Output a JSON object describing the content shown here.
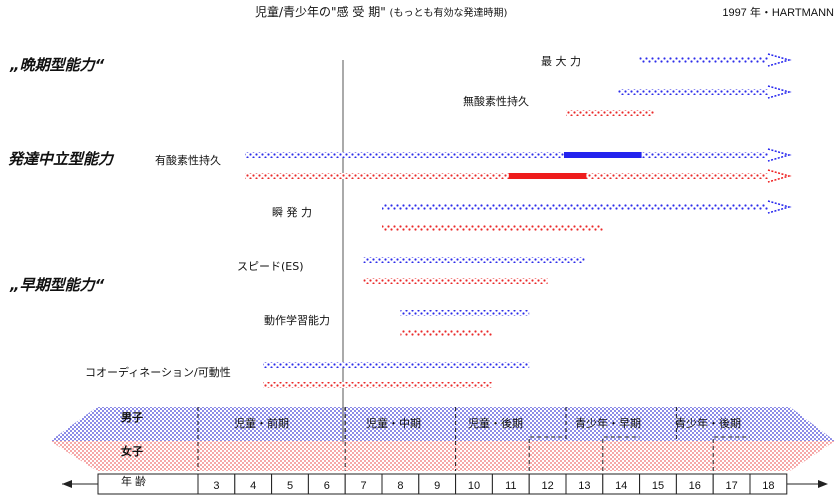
{
  "title": "児童/青少年の\"感 受 期\"",
  "subtitle": "(もっとも有効な発達時期)",
  "credit": "1997 年・HARTMANN",
  "groups": {
    "late": "„晩期型能力“",
    "neutral": "発達中立型能力",
    "early": "„早期型能力“"
  },
  "abilities": [
    {
      "label": "最 大 力",
      "boys": [
        15,
        19
      ],
      "girls": null,
      "boys_peak": null,
      "girls_peak": null
    },
    {
      "label": "無酸素性持久",
      "boys": [
        14.4,
        19
      ],
      "girls": [
        13,
        15.4
      ],
      "boys_peak": null,
      "girls_peak": null
    },
    {
      "label": "有酸素性持久",
      "boys": [
        3,
        19
      ],
      "girls": [
        3,
        19
      ],
      "boys_peak": [
        13,
        15
      ],
      "girls_peak": [
        11.5,
        13.5
      ]
    },
    {
      "label": "瞬 発 力",
      "boys": [
        8,
        19
      ],
      "girls": [
        8,
        14
      ],
      "boys_peak": null,
      "girls_peak": null
    },
    {
      "label": "スピード(ES)",
      "boys": [
        7.5,
        13.5
      ],
      "girls": [
        7.5,
        12.5
      ],
      "boys_peak": null,
      "girls_peak": null
    },
    {
      "label": "動作学習能力",
      "boys": [
        8.5,
        12
      ],
      "girls": [
        8.5,
        11
      ],
      "boys_peak": null,
      "girls_peak": null
    },
    {
      "label": "コオーディネーション/可動性",
      "boys": [
        5.5,
        12
      ],
      "girls": [
        5.5,
        11
      ],
      "boys_peak": null,
      "girls_peak": null
    }
  ],
  "band": {
    "boys_label": "男子",
    "girls_label": "女子",
    "phases": [
      "児童・前期",
      "児童・中期",
      "児童・後期",
      "青少年・早期",
      "青少年・後期"
    ]
  },
  "age_axis": {
    "label": "年  齢",
    "ticks": [
      3,
      4,
      5,
      6,
      7,
      8,
      9,
      10,
      11,
      12,
      13,
      14,
      15,
      16,
      17,
      18
    ]
  },
  "colors": {
    "boys": "#2323ee",
    "girls": "#ee1c1c",
    "boys_band": "#3a3ad6",
    "girls_band": "#f07676"
  }
}
